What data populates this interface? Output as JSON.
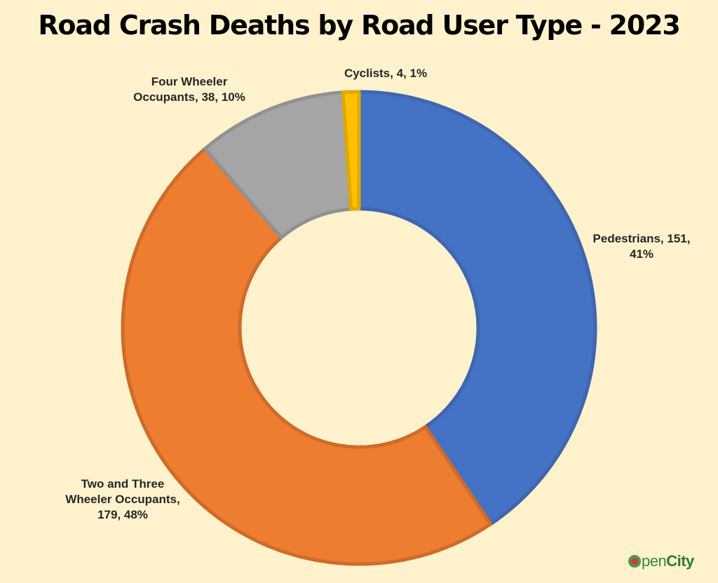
{
  "chart_data": {
    "type": "pie",
    "title": "Road Crash Deaths by Road User Type - 2023",
    "categories": [
      "Pedestrians",
      "Two and Three Wheeler Occupants",
      "Four Wheeler Occupants",
      "Cyclists"
    ],
    "values": [
      151,
      179,
      38,
      4
    ],
    "percentages": [
      "41%",
      "48%",
      "10%",
      "1%"
    ],
    "labels": [
      "Pedestrians, 151,\n41%",
      "Two and Three\nWheeler Occupants,\n179, 48%",
      "Four Wheeler\nOccupants, 38, 10%",
      "Cyclists, 4, 1%"
    ],
    "colors": [
      "#4472C4",
      "#ED7D31",
      "#A5A5A5",
      "#FFC000"
    ],
    "border_colors": [
      "#3F66AE",
      "#D06B28",
      "#919191",
      "#E0A800"
    ],
    "donut": true,
    "legend": "none"
  },
  "branding": {
    "logo_text_a": "pen",
    "logo_text_b": "City",
    "logo_icon": "opencity-logo-icon"
  }
}
